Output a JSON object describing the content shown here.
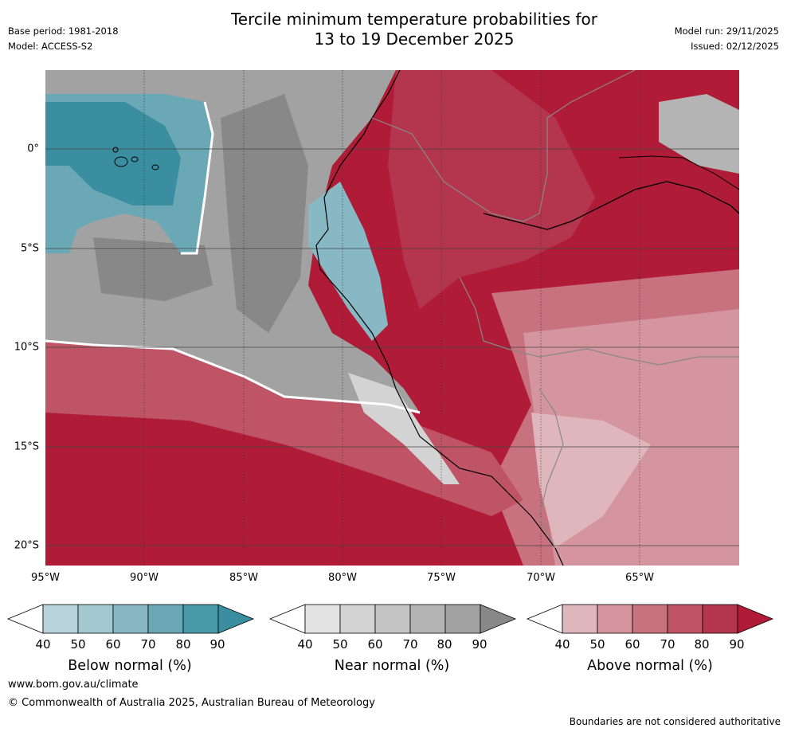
{
  "title_line1": "Tercile minimum temperature probabilities for",
  "title_line2": "13 to 19 December 2025",
  "meta": {
    "base_period": "Base period: 1981-2018",
    "model": "Model: ACCESS-S2",
    "model_run": "Model run: 29/11/2025",
    "issued": "Issued: 02/12/2025"
  },
  "map": {
    "lat_labels": [
      "0°",
      "5°S",
      "10°S",
      "15°S",
      "20°S"
    ],
    "lon_labels": [
      "95°W",
      "90°W",
      "85°W",
      "80°W",
      "75°W",
      "70°W",
      "65°W"
    ]
  },
  "colorbars": [
    {
      "label": "Below normal (%)",
      "ticks": [
        "40",
        "50",
        "60",
        "70",
        "80",
        "90"
      ],
      "colors": [
        "#ffffff",
        "#b8d3da",
        "#a3c8cf",
        "#88b8c4",
        "#6aa8b6",
        "#4a9ba9",
        "#3a8ea0"
      ]
    },
    {
      "label": "Near normal (%)",
      "ticks": [
        "40",
        "50",
        "60",
        "70",
        "80",
        "90"
      ],
      "colors": [
        "#ffffff",
        "#e3e3e3",
        "#d3d3d3",
        "#c4c4c4",
        "#b4b4b4",
        "#a2a2a2",
        "#888888"
      ]
    },
    {
      "label": "Above normal (%)",
      "ticks": [
        "40",
        "50",
        "60",
        "70",
        "80",
        "90"
      ],
      "colors": [
        "#ffffff",
        "#e0b6bd",
        "#d4959f",
        "#c8727f",
        "#be5466",
        "#b4364e",
        "#b01c37"
      ]
    }
  ],
  "footer": {
    "website": "www.bom.gov.au/climate",
    "copyright": "© Commonwealth of Australia 2025, Australian Bureau of Meteorology",
    "disclaimer": "Boundaries are not considered authoritative"
  }
}
